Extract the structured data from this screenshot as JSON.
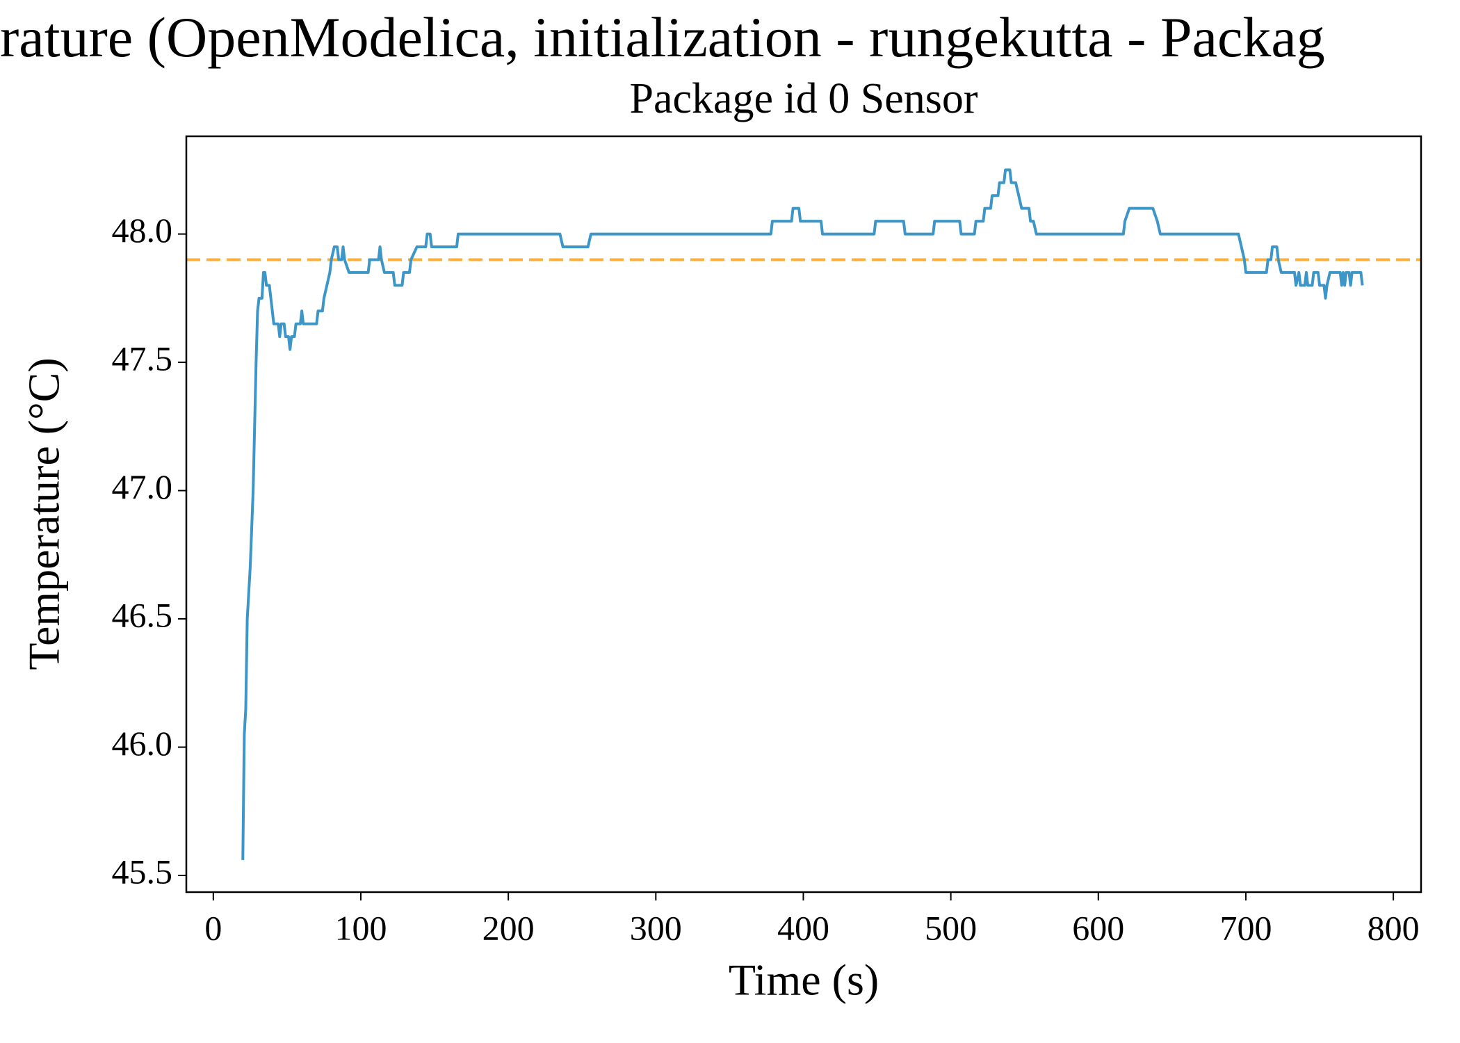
{
  "chart_data": {
    "type": "line",
    "title": "rature (OpenModelica, initialization - rungekutta - Packag",
    "subtitle": "Package id 0 Sensor",
    "xlabel": "Time (s)",
    "ylabel": "Temperature (°C)",
    "xlim": [
      -18.3,
      818.8
    ],
    "ylim": [
      45.435,
      48.381
    ],
    "xticks": [
      0,
      100,
      200,
      300,
      400,
      500,
      600,
      700,
      800
    ],
    "yticks": [
      {
        "value": 45.5,
        "label": "45.5"
      },
      {
        "value": 46,
        "label": "46.0"
      },
      {
        "value": 46.5,
        "label": "46.5"
      },
      {
        "value": 47,
        "label": "47.0"
      },
      {
        "value": 47.5,
        "label": "47.5"
      },
      {
        "value": 48,
        "label": "48.0"
      }
    ],
    "grid": false,
    "x": [
      20,
      21,
      22,
      23,
      25,
      27,
      29,
      30,
      31,
      33,
      34,
      35,
      36,
      38,
      39,
      40,
      41,
      44,
      45,
      46,
      48,
      49,
      51,
      52,
      53,
      55,
      56,
      59,
      60,
      61,
      70,
      71,
      74,
      75,
      77,
      79,
      80,
      82,
      84,
      85,
      87,
      88,
      89,
      92,
      105,
      106,
      112,
      113,
      114,
      116,
      122,
      123,
      128,
      129,
      133,
      134,
      138,
      144,
      145,
      147,
      148,
      165,
      166,
      235,
      237,
      254,
      256,
      378,
      379,
      392,
      393,
      397,
      398,
      412,
      413,
      448,
      449,
      468,
      469,
      488,
      489,
      506,
      507,
      516,
      517,
      522,
      523,
      527,
      528,
      532,
      533,
      536,
      537,
      540,
      541,
      544,
      546,
      548,
      553,
      554,
      556,
      558,
      617,
      618,
      621,
      637,
      640,
      642,
      695,
      697,
      699,
      700,
      714,
      715,
      717,
      718,
      721,
      722,
      724,
      733,
      734,
      736,
      737,
      740,
      741,
      742,
      745,
      746,
      749,
      750,
      753,
      754,
      755,
      757,
      764,
      765,
      766,
      767,
      768,
      770,
      771,
      772,
      778,
      779
    ],
    "series": [
      {
        "color": "#3c96c8",
        "values": [
          45.56,
          46.05,
          46.15,
          46.5,
          46.7,
          47.0,
          47.5,
          47.7,
          47.75,
          47.75,
          47.85,
          47.85,
          47.8,
          47.8,
          47.75,
          47.7,
          47.65,
          47.65,
          47.6,
          47.65,
          47.65,
          47.6,
          47.6,
          47.55,
          47.6,
          47.6,
          47.65,
          47.65,
          47.7,
          47.65,
          47.65,
          47.7,
          47.7,
          47.75,
          47.8,
          47.85,
          47.9,
          47.95,
          47.95,
          47.9,
          47.9,
          47.95,
          47.9,
          47.85,
          47.85,
          47.9,
          47.9,
          47.95,
          47.9,
          47.85,
          47.85,
          47.8,
          47.8,
          47.85,
          47.85,
          47.9,
          47.95,
          47.95,
          48.0,
          48.0,
          47.95,
          47.95,
          48.0,
          48.0,
          47.95,
          47.95,
          48.0,
          48.0,
          48.05,
          48.05,
          48.1,
          48.1,
          48.05,
          48.05,
          48.0,
          48.0,
          48.05,
          48.05,
          48.0,
          48.0,
          48.05,
          48.05,
          48.0,
          48.0,
          48.05,
          48.05,
          48.1,
          48.1,
          48.15,
          48.15,
          48.2,
          48.2,
          48.25,
          48.25,
          48.2,
          48.2,
          48.15,
          48.1,
          48.1,
          48.05,
          48.05,
          48.0,
          48.0,
          48.05,
          48.1,
          48.1,
          48.05,
          48.0,
          48.0,
          47.95,
          47.9,
          47.85,
          47.85,
          47.9,
          47.9,
          47.95,
          47.95,
          47.9,
          47.85,
          47.85,
          47.8,
          47.85,
          47.8,
          47.8,
          47.85,
          47.8,
          47.8,
          47.85,
          47.85,
          47.8,
          47.8,
          47.75,
          47.8,
          47.85,
          47.85,
          47.8,
          47.85,
          47.8,
          47.85,
          47.85,
          47.8,
          47.85,
          47.85,
          47.8
        ]
      }
    ],
    "hlines": [
      {
        "value": 47.9,
        "color": "#fbaf3c",
        "style": "dashed"
      }
    ]
  }
}
